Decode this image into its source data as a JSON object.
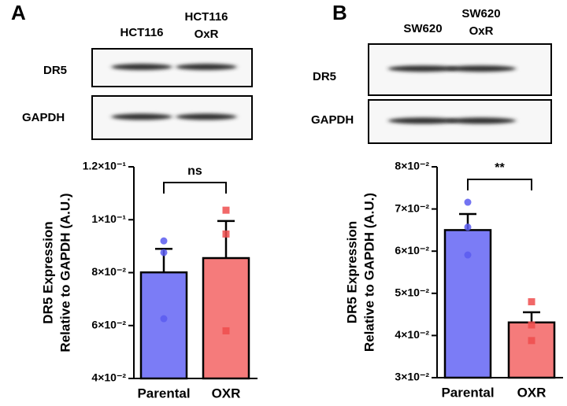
{
  "panels": [
    {
      "letter": "A",
      "lanes": [
        [
          "HCT116"
        ],
        [
          "HCT116",
          "OxR"
        ]
      ],
      "bands": [
        "DR5",
        "GAPDH"
      ]
    },
    {
      "letter": "B",
      "lanes": [
        [
          "SW620"
        ],
        [
          "SW620",
          "OxR"
        ]
      ],
      "bands": [
        "DR5",
        "GAPDH"
      ]
    }
  ],
  "chart_data": [
    {
      "type": "bar",
      "ylabel": [
        "DR5 Expression",
        "Relative to GAPDH (A.U.)"
      ],
      "categories": [
        "Parental",
        "OXR"
      ],
      "values": [
        0.0801,
        0.0855
      ],
      "errors": [
        0.0089,
        0.014
      ],
      "colors": [
        "#7b7cf6",
        "#f57b7b"
      ],
      "point_colors": [
        "#5a5cf0",
        "#ee4d4d"
      ],
      "markers": [
        "circle",
        "square"
      ],
      "points": [
        [
          0.092,
          0.0876,
          0.0626
        ],
        [
          0.1036,
          0.0946,
          0.058
        ]
      ],
      "annotation": "ns",
      "ylim": [
        0.04,
        0.12
      ],
      "yticks": [
        {
          "value": 0.04,
          "label": "4×10⁻²"
        },
        {
          "value": 0.06,
          "label": "6×10⁻²"
        },
        {
          "value": 0.08,
          "label": "8×10⁻²"
        },
        {
          "value": 0.1,
          "label": "1×10⁻¹"
        },
        {
          "value": 0.12,
          "label": "1.2×10⁻¹"
        }
      ]
    },
    {
      "type": "bar",
      "ylabel": [
        "DR5 Expression",
        "Relative to GAPDH (A.U.)"
      ],
      "categories": [
        "Parental",
        "OXR"
      ],
      "values": [
        0.065,
        0.0431
      ],
      "errors": [
        0.0038,
        0.0024
      ],
      "colors": [
        "#7b7cf6",
        "#f57b7b"
      ],
      "point_colors": [
        "#5a5cf0",
        "#ee4d4d"
      ],
      "markers": [
        "circle",
        "square"
      ],
      "points": [
        [
          0.0716,
          0.0657,
          0.0591
        ],
        [
          0.048,
          0.0425,
          0.0388
        ]
      ],
      "annotation": "**",
      "ylim": [
        0.03,
        0.08
      ],
      "yticks": [
        {
          "value": 0.03,
          "label": "3×10⁻²"
        },
        {
          "value": 0.04,
          "label": "4×10⁻²"
        },
        {
          "value": 0.05,
          "label": "5×10⁻²"
        },
        {
          "value": 0.06,
          "label": "6×10⁻²"
        },
        {
          "value": 0.07,
          "label": "7×10⁻²"
        },
        {
          "value": 0.08,
          "label": "8×10⁻²"
        }
      ]
    }
  ]
}
